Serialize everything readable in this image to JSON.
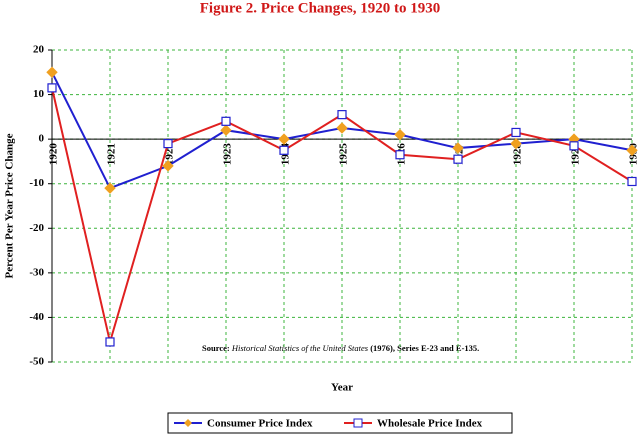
{
  "chart_data": {
    "type": "line",
    "title": "Figure 2. Price Changes, 1920 to 1930",
    "x_label": "Year",
    "y_label": "Percent Per Year Price Change",
    "categories": [
      "1920",
      "1921",
      "1922",
      "1923",
      "1924",
      "1925",
      "1926",
      "1927",
      "1928",
      "1929",
      "1930"
    ],
    "series": [
      {
        "name": "Consumer Price Index",
        "color": "#2020d0",
        "marker_color": "#f0a020",
        "values": [
          15,
          -11,
          -6,
          2,
          0,
          2.5,
          1,
          -2,
          -1,
          0,
          -2.5
        ]
      },
      {
        "name": "Wholesale Price Index",
        "color": "#e02020",
        "marker_color": "#ffffff",
        "values": [
          11.5,
          -45.5,
          -1,
          4,
          -2.5,
          5.5,
          -3.5,
          -4.5,
          1.5,
          -1.5,
          -9.5
        ]
      }
    ],
    "ylim": [
      -50,
      20
    ],
    "yticks": [
      -50,
      -40,
      -30,
      -20,
      -10,
      0,
      10,
      20
    ],
    "grid": true,
    "legend": "bottom",
    "annotation": [
      "Source:",
      "Historical Statistics of the United States",
      "(1976), Series E-23 and E-135."
    ]
  }
}
